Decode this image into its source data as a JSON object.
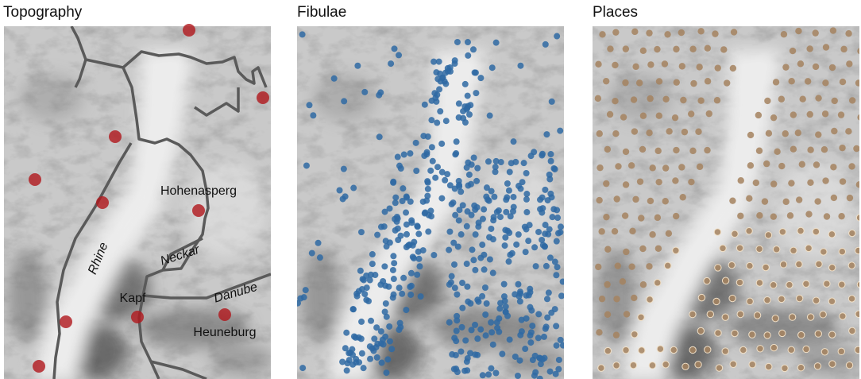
{
  "panels": [
    {
      "title": "Topography",
      "labels": [
        "Hohenasperg",
        "Neckar",
        "Rhine",
        "Kapf",
        "Danube",
        "Heuneburg"
      ]
    },
    {
      "title": "Fibulae"
    },
    {
      "title": "Places"
    }
  ]
}
